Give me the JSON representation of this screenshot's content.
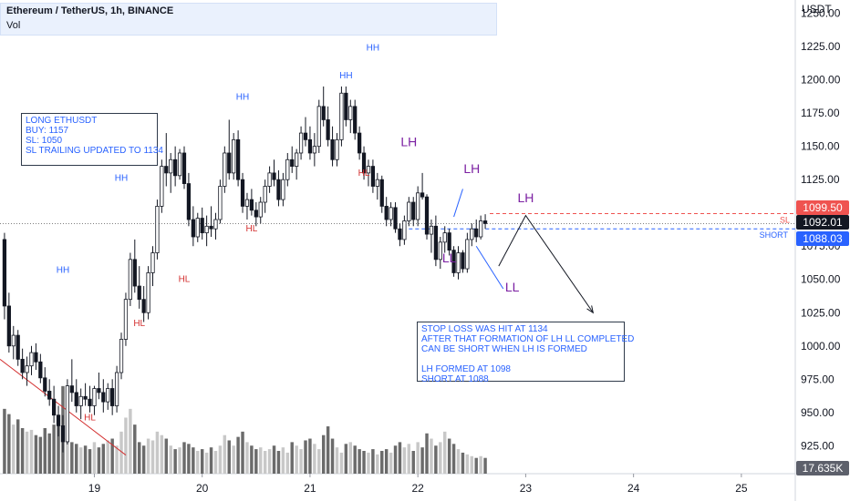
{
  "header": {
    "title": "Ethereum / TetherUS, 1h, BINANCE",
    "volume_label": "Vol"
  },
  "axis_unit": "USDT",
  "notes": {
    "trade": "LONG ETHUSDT\nBUY: 1157\nSL: 1050\nSL TRAILING UPDATED TO 1134",
    "summary": "STOP LOSS WAS HIT AT 1134\nAFTER THAT FORMATION OF LH LL COMPLETED\nCAN BE SHORT WHEN LH IS FORMED\n\nLH FORMED AT 1098\nSHORT AT 1088"
  },
  "price_tags": {
    "sl": "1099.50",
    "last": "1092.01",
    "short": "1088.03",
    "volume": "17.635K"
  },
  "line_labels": {
    "sl": "SL",
    "short": "SHORT"
  },
  "colors": {
    "up": "#ffffff",
    "down": "#131722",
    "hh": "#2962ff",
    "hl": "#d32f2f",
    "lh": "#7b1fa2",
    "sl": "#ef5350",
    "short": "#2962ff"
  },
  "chart_data": {
    "type": "candlestick",
    "symbol": "Ethereum / TetherUS",
    "interval": "1h",
    "exchange": "BINANCE",
    "y_ticks": [
      925,
      950,
      975,
      1000,
      1025,
      1050,
      1075,
      1100,
      1125,
      1150,
      1175,
      1200,
      1225,
      1250
    ],
    "y_tick_labels": [
      "925.00",
      "950.00",
      "975.00",
      "1000.00",
      "1025.00",
      "1050.00",
      "1075.00",
      "1100.00",
      "1125.00",
      "1150.00",
      "1175.00",
      "1200.00",
      "1225.00",
      "1250.00"
    ],
    "ylim": [
      904,
      1260
    ],
    "x_tick_labels": [
      "19",
      "20",
      "21",
      "22",
      "23",
      "24",
      "25"
    ],
    "x_ticks_bar": [
      20,
      44,
      68,
      92,
      116,
      140,
      164
    ],
    "xlim_bar": [
      -1,
      176
    ],
    "candles": [
      [
        1080,
        1085,
        1020,
        1030
      ],
      [
        1030,
        1040,
        995,
        1000
      ],
      [
        1000,
        1015,
        990,
        1008
      ],
      [
        1008,
        1012,
        985,
        990
      ],
      [
        990,
        998,
        975,
        980
      ],
      [
        980,
        992,
        970,
        985
      ],
      [
        985,
        1000,
        978,
        995
      ],
      [
        995,
        1002,
        982,
        988
      ],
      [
        988,
        994,
        972,
        976
      ],
      [
        976,
        984,
        962,
        966
      ],
      [
        966,
        975,
        955,
        960
      ],
      [
        960,
        970,
        942,
        948
      ],
      [
        948,
        955,
        932,
        940
      ],
      [
        940,
        948,
        920,
        928
      ],
      [
        928,
        975,
        926,
        970
      ],
      [
        970,
        990,
        958,
        965
      ],
      [
        965,
        975,
        950,
        955
      ],
      [
        955,
        968,
        945,
        962
      ],
      [
        962,
        972,
        955,
        960
      ],
      [
        960,
        970,
        950,
        955
      ],
      [
        955,
        970,
        948,
        968
      ],
      [
        968,
        980,
        960,
        965
      ],
      [
        965,
        975,
        950,
        958
      ],
      [
        958,
        972,
        952,
        968
      ],
      [
        968,
        975,
        948,
        955
      ],
      [
        955,
        985,
        950,
        980
      ],
      [
        980,
        1010,
        975,
        1005
      ],
      [
        1005,
        1040,
        1000,
        1035
      ],
      [
        1035,
        1070,
        1030,
        1065
      ],
      [
        1065,
        1080,
        1040,
        1045
      ],
      [
        1045,
        1060,
        1028,
        1035
      ],
      [
        1035,
        1045,
        1018,
        1025
      ],
      [
        1025,
        1060,
        1020,
        1055
      ],
      [
        1055,
        1075,
        1045,
        1070
      ],
      [
        1070,
        1110,
        1065,
        1105
      ],
      [
        1105,
        1140,
        1100,
        1135
      ],
      [
        1135,
        1160,
        1120,
        1130
      ],
      [
        1130,
        1145,
        1115,
        1140
      ],
      [
        1140,
        1150,
        1120,
        1128
      ],
      [
        1128,
        1148,
        1125,
        1145
      ],
      [
        1145,
        1150,
        1118,
        1122
      ],
      [
        1122,
        1130,
        1090,
        1095
      ],
      [
        1095,
        1105,
        1075,
        1082
      ],
      [
        1082,
        1100,
        1078,
        1096
      ],
      [
        1096,
        1104,
        1080,
        1085
      ],
      [
        1085,
        1098,
        1075,
        1090
      ],
      [
        1090,
        1105,
        1082,
        1088
      ],
      [
        1088,
        1100,
        1080,
        1095
      ],
      [
        1095,
        1125,
        1092,
        1120
      ],
      [
        1120,
        1150,
        1115,
        1145
      ],
      [
        1145,
        1170,
        1125,
        1130
      ],
      [
        1130,
        1160,
        1125,
        1155
      ],
      [
        1155,
        1162,
        1120,
        1125
      ],
      [
        1125,
        1130,
        1100,
        1105
      ],
      [
        1105,
        1115,
        1095,
        1110
      ],
      [
        1110,
        1118,
        1098,
        1102
      ],
      [
        1102,
        1108,
        1090,
        1097
      ],
      [
        1097,
        1112,
        1092,
        1108
      ],
      [
        1108,
        1125,
        1100,
        1120
      ],
      [
        1120,
        1135,
        1115,
        1130
      ],
      [
        1130,
        1140,
        1120,
        1125
      ],
      [
        1125,
        1132,
        1105,
        1110
      ],
      [
        1110,
        1130,
        1105,
        1125
      ],
      [
        1125,
        1145,
        1120,
        1140
      ],
      [
        1140,
        1150,
        1130,
        1135
      ],
      [
        1135,
        1148,
        1125,
        1145
      ],
      [
        1145,
        1165,
        1140,
        1160
      ],
      [
        1160,
        1172,
        1150,
        1155
      ],
      [
        1155,
        1165,
        1140,
        1145
      ],
      [
        1145,
        1160,
        1135,
        1150
      ],
      [
        1150,
        1185,
        1145,
        1180
      ],
      [
        1180,
        1195,
        1165,
        1170
      ],
      [
        1170,
        1180,
        1150,
        1155
      ],
      [
        1155,
        1165,
        1135,
        1140
      ],
      [
        1140,
        1160,
        1135,
        1155
      ],
      [
        1155,
        1195,
        1150,
        1190
      ],
      [
        1190,
        1195,
        1165,
        1170
      ],
      [
        1170,
        1185,
        1160,
        1180
      ],
      [
        1180,
        1185,
        1155,
        1160
      ],
      [
        1160,
        1165,
        1140,
        1145
      ],
      [
        1145,
        1150,
        1125,
        1130
      ],
      [
        1130,
        1140,
        1120,
        1135
      ],
      [
        1135,
        1140,
        1115,
        1120
      ],
      [
        1120,
        1130,
        1110,
        1125
      ],
      [
        1125,
        1128,
        1100,
        1105
      ],
      [
        1105,
        1112,
        1090,
        1095
      ],
      [
        1095,
        1108,
        1090,
        1104
      ],
      [
        1104,
        1108,
        1085,
        1088
      ],
      [
        1088,
        1092,
        1075,
        1080
      ],
      [
        1080,
        1098,
        1076,
        1094
      ],
      [
        1094,
        1112,
        1090,
        1108
      ],
      [
        1108,
        1112,
        1090,
        1095
      ],
      [
        1095,
        1120,
        1090,
        1115
      ],
      [
        1115,
        1130,
        1110,
        1112
      ],
      [
        1112,
        1114,
        1080,
        1084
      ],
      [
        1084,
        1095,
        1070,
        1090
      ],
      [
        1090,
        1098,
        1060,
        1065
      ],
      [
        1065,
        1082,
        1058,
        1078
      ],
      [
        1078,
        1090,
        1070,
        1085
      ],
      [
        1085,
        1088,
        1068,
        1072
      ],
      [
        1072,
        1075,
        1052,
        1055
      ],
      [
        1055,
        1075,
        1050,
        1070
      ],
      [
        1070,
        1072,
        1055,
        1058
      ],
      [
        1058,
        1085,
        1055,
        1080
      ],
      [
        1080,
        1092,
        1075,
        1088
      ],
      [
        1088,
        1095,
        1078,
        1082
      ],
      [
        1082,
        1098,
        1080,
        1094
      ],
      [
        1094,
        1099,
        1088,
        1092
      ]
    ],
    "volume": [
      [
        0,
        18.5
      ],
      [
        1,
        17.0
      ],
      [
        2,
        14.0
      ],
      [
        3,
        15.5
      ],
      [
        4,
        13.0
      ],
      [
        5,
        12.0
      ],
      [
        6,
        12.5
      ],
      [
        7,
        11.0
      ],
      [
        8,
        10.5
      ],
      [
        9,
        13.0
      ],
      [
        10,
        11.5
      ],
      [
        11,
        14.0
      ],
      [
        12,
        16.0
      ],
      [
        13,
        25.0
      ],
      [
        14,
        13.0
      ],
      [
        15,
        9.0
      ],
      [
        16,
        8.5
      ],
      [
        17,
        7.5
      ],
      [
        18,
        8.0
      ],
      [
        19,
        7.0
      ],
      [
        20,
        9.0
      ],
      [
        21,
        7.5
      ],
      [
        22,
        8.5
      ],
      [
        23,
        9.5
      ],
      [
        24,
        10.0
      ],
      [
        25,
        8.0
      ],
      [
        26,
        12.0
      ],
      [
        27,
        16.0
      ],
      [
        28,
        18.5
      ],
      [
        29,
        14.0
      ],
      [
        30,
        9.0
      ],
      [
        31,
        8.0
      ],
      [
        32,
        10.0
      ],
      [
        33,
        9.5
      ],
      [
        34,
        12.0
      ],
      [
        35,
        11.0
      ],
      [
        36,
        10.0
      ],
      [
        37,
        8.0
      ],
      [
        38,
        7.0
      ],
      [
        39,
        7.5
      ],
      [
        40,
        9.0
      ],
      [
        41,
        8.5
      ],
      [
        42,
        7.5
      ],
      [
        43,
        6.5
      ],
      [
        44,
        7.0
      ],
      [
        45,
        6.0
      ],
      [
        46,
        7.5
      ],
      [
        47,
        6.5
      ],
      [
        48,
        8.0
      ],
      [
        49,
        11.0
      ],
      [
        50,
        9.5
      ],
      [
        51,
        8.0
      ],
      [
        52,
        10.5
      ],
      [
        53,
        12.0
      ],
      [
        54,
        9.0
      ],
      [
        55,
        8.0
      ],
      [
        56,
        7.0
      ],
      [
        57,
        7.5
      ],
      [
        58,
        6.5
      ],
      [
        59,
        7.0
      ],
      [
        60,
        8.0
      ],
      [
        61,
        6.5
      ],
      [
        62,
        7.5
      ],
      [
        63,
        6.0
      ],
      [
        64,
        9.0
      ],
      [
        65,
        8.0
      ],
      [
        66,
        7.0
      ],
      [
        67,
        9.5
      ],
      [
        68,
        10.0
      ],
      [
        69,
        8.5
      ],
      [
        70,
        7.0
      ],
      [
        71,
        11.0
      ],
      [
        72,
        13.5
      ],
      [
        73,
        10.0
      ],
      [
        74,
        7.5
      ],
      [
        75,
        6.0
      ],
      [
        76,
        8.5
      ],
      [
        77,
        9.0
      ],
      [
        78,
        8.0
      ],
      [
        79,
        7.0
      ],
      [
        80,
        6.5
      ],
      [
        81,
        6.0
      ],
      [
        82,
        7.0
      ],
      [
        83,
        5.5
      ],
      [
        84,
        6.5
      ],
      [
        85,
        7.0
      ],
      [
        86,
        6.0
      ],
      [
        87,
        8.0
      ],
      [
        88,
        9.0
      ],
      [
        89,
        7.5
      ],
      [
        90,
        8.5
      ],
      [
        91,
        6.5
      ],
      [
        92,
        9.0
      ],
      [
        93,
        7.5
      ],
      [
        94,
        11.5
      ],
      [
        95,
        10.0
      ],
      [
        96,
        8.0
      ],
      [
        97,
        9.0
      ],
      [
        98,
        12.0
      ],
      [
        99,
        10.0
      ],
      [
        100,
        8.5
      ],
      [
        101,
        7.0
      ],
      [
        102,
        6.0
      ],
      [
        103,
        5.5
      ],
      [
        104,
        5.0
      ],
      [
        105,
        4.5
      ],
      [
        106,
        5.0
      ],
      [
        107,
        4.5
      ]
    ],
    "volume_max": 26,
    "swing_labels": [
      {
        "text": "HH",
        "type": "hh",
        "bar": 13,
        "price": 1055
      },
      {
        "text": "HH",
        "type": "hh",
        "bar": 26,
        "price": 1124
      },
      {
        "text": "HH",
        "type": "hh",
        "bar": 53,
        "price": 1185
      },
      {
        "text": "HH",
        "type": "hh",
        "bar": 76,
        "price": 1201
      },
      {
        "text": "HH",
        "type": "hh",
        "bar": 82,
        "price": 1222
      },
      {
        "text": "HL",
        "type": "hl",
        "bar": 19,
        "price": 944
      },
      {
        "text": "HL",
        "type": "hl",
        "bar": 30,
        "price": 1015
      },
      {
        "text": "HL",
        "type": "hl",
        "bar": 40,
        "price": 1048
      },
      {
        "text": "HL",
        "type": "hl",
        "bar": 55,
        "price": 1086
      },
      {
        "text": "HL",
        "type": "hl",
        "bar": 80,
        "price": 1128
      },
      {
        "text": "LH",
        "type": "lh",
        "bar": 90,
        "price": 1150
      },
      {
        "text": "LH",
        "type": "lh",
        "bar": 104,
        "price": 1130
      },
      {
        "text": "LH",
        "type": "lh",
        "bar": 116,
        "price": 1108
      },
      {
        "text": "LL",
        "type": "lh",
        "bar": 99,
        "price": 1063
      },
      {
        "text": "LL",
        "type": "lh",
        "bar": 113,
        "price": 1041
      }
    ],
    "levels": {
      "sl": 1099.5,
      "short": 1088.03,
      "last": 1092.01
    },
    "projection": [
      [
        110,
        1060
      ],
      [
        116,
        1098
      ],
      [
        131,
        1025
      ]
    ],
    "trendline": [
      [
        -1,
        990
      ],
      [
        27,
        918
      ]
    ],
    "arrows": [
      [
        [
          100,
          1097
        ],
        [
          102,
          1118
        ]
      ],
      [
        [
          105,
          1075
        ],
        [
          111,
          1043
        ]
      ]
    ]
  }
}
